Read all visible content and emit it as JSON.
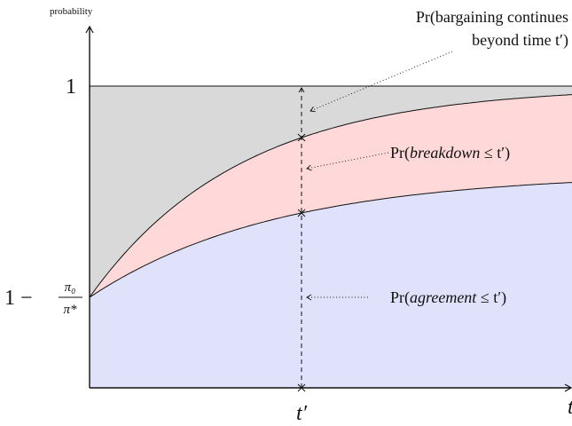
{
  "axes": {
    "y_label": "probability",
    "x_label": "t",
    "y_top": "1",
    "y_low": {
      "lead": "1 −",
      "num": "π₀",
      "den": "π*"
    },
    "x_tick": "t′"
  },
  "annotations": {
    "continues": {
      "line1": "Pr(bargaining continues",
      "line2": "beyond time t′)"
    },
    "breakdown": {
      "prefix": "Pr(",
      "italic": "breakdown",
      "suffix": " ≤ t′)"
    },
    "agreement": {
      "prefix": "Pr(",
      "italic": "agreement",
      "suffix": " ≤ t′)"
    }
  }
}
